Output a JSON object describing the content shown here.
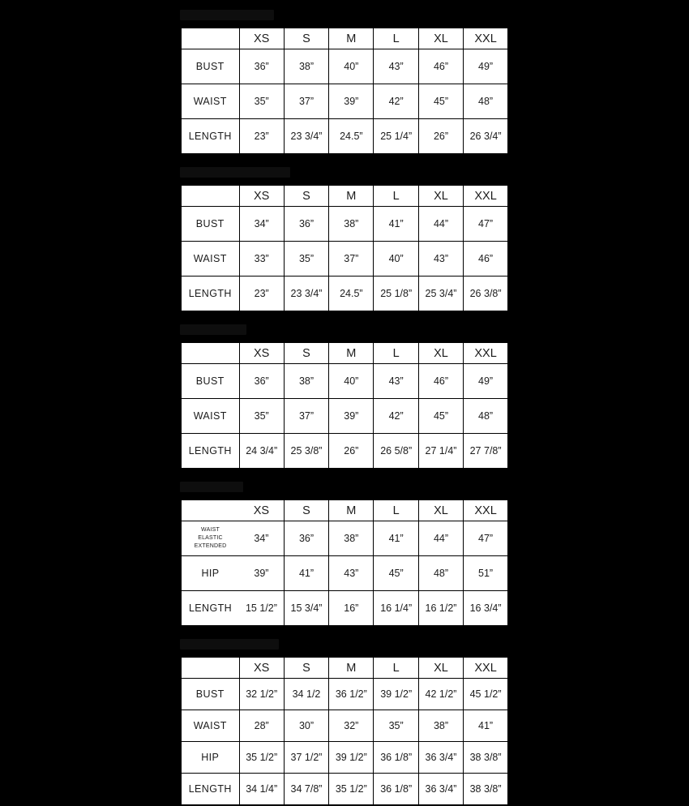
{
  "canvas": {
    "background": "#000000",
    "table_background": "#ffffff",
    "grid_color": "#000000",
    "text_color": "#1c1c1c"
  },
  "size_headers": [
    "",
    "XS",
    "S",
    "M",
    "L",
    "XL",
    "XXL"
  ],
  "sections": [
    {
      "title": "",
      "rows": [
        {
          "label": "BUST",
          "values": [
            "36”",
            "38”",
            "40”",
            "43”",
            "46”",
            "49”"
          ]
        },
        {
          "label": "WAIST",
          "values": [
            "35”",
            "37”",
            "39”",
            "42”",
            "45”",
            "48”"
          ]
        },
        {
          "label": "LENGTH",
          "values": [
            "23”",
            "23 3/4”",
            "24.5”",
            "25 1/4”",
            "26”",
            "26 3/4”"
          ]
        }
      ]
    },
    {
      "title": "",
      "rows": [
        {
          "label": "BUST",
          "values": [
            "34”",
            "36”",
            "38”",
            "41”",
            "44”",
            "47”"
          ]
        },
        {
          "label": "WAIST",
          "values": [
            "33”",
            "35”",
            "37”",
            "40”",
            "43”",
            "46”"
          ]
        },
        {
          "label": "LENGTH",
          "values": [
            "23”",
            "23 3/4”",
            "24.5”",
            "25 1/8”",
            "25 3/4”",
            "26 3/8”"
          ]
        }
      ]
    },
    {
      "title": "",
      "rows": [
        {
          "label": "BUST",
          "values": [
            "36”",
            "38”",
            "40”",
            "43”",
            "46”",
            "49”"
          ]
        },
        {
          "label": "WAIST",
          "values": [
            "35”",
            "37”",
            "39”",
            "42”",
            "45”",
            "48”"
          ]
        },
        {
          "label": "LENGTH",
          "values": [
            "24 3/4”",
            "25 3/8”",
            "26”",
            "26 5/8”",
            "27 1/4”",
            "27 7/8”"
          ]
        }
      ]
    },
    {
      "title": "",
      "no_label_divider": true,
      "rows": [
        {
          "label_lines": [
            "WAIST",
            "ELASTIC EXTENDED"
          ],
          "values": [
            "34”",
            "36”",
            "38”",
            "41”",
            "44”",
            "47”"
          ]
        },
        {
          "label": "HIP",
          "values": [
            "39”",
            "41”",
            "43”",
            "45”",
            "48”",
            "51”"
          ]
        },
        {
          "label": "LENGTH",
          "values": [
            "15 1/2”",
            "15 3/4”",
            "16”",
            "16 1/4”",
            "16 1/2”",
            "16 3/4”"
          ]
        }
      ]
    },
    {
      "title": "",
      "rows": [
        {
          "label": "BUST",
          "values": [
            "32 1/2”",
            "34 1/2",
            "36 1/2”",
            "39 1/2”",
            "42 1/2”",
            "45 1/2”"
          ]
        },
        {
          "label": "WAIST",
          "values": [
            "28”",
            "30”",
            "32”",
            "35”",
            "38”",
            "41”"
          ]
        },
        {
          "label": "HIP",
          "values": [
            "35 1/2”",
            "37 1/2”",
            "39 1/2”",
            "36 1/8”",
            "36 3/4”",
            "38 3/8”"
          ]
        },
        {
          "label": "LENGTH",
          "values": [
            "34 1/4”",
            "34 7/8”",
            "35 1/2”",
            "36 1/8”",
            "36 3/4”",
            "38 3/8”"
          ]
        }
      ]
    }
  ]
}
